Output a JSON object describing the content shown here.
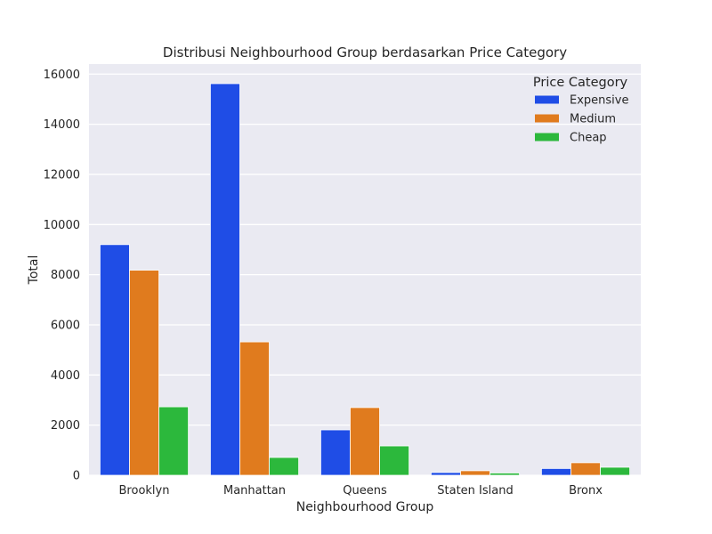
{
  "chart_data": {
    "type": "bar",
    "title": "Distribusi Neighbourhood Group berdasarkan Price Category",
    "xlabel": "Neighbourhood Group",
    "ylabel": "Total",
    "categories": [
      "Brooklyn",
      "Manhattan",
      "Queens",
      "Staten Island",
      "Bronx"
    ],
    "series": [
      {
        "name": "Expensive",
        "color": "#1f4de6",
        "values": [
          9200,
          15620,
          1810,
          110,
          270
        ]
      },
      {
        "name": "Medium",
        "color": "#e07b1e",
        "values": [
          8180,
          5320,
          2700,
          180,
          500
        ]
      },
      {
        "name": "Cheap",
        "color": "#2cb83c",
        "values": [
          2730,
          710,
          1170,
          90,
          320
        ]
      }
    ],
    "ylim": [
      0,
      16400
    ],
    "yticks": [
      0,
      2000,
      4000,
      6000,
      8000,
      10000,
      12000,
      14000,
      16000
    ],
    "grid": true,
    "legend": {
      "title": "Price Category",
      "position": "top-right"
    },
    "colors": {
      "plot_background": "#eaeaf2",
      "grid": "#ffffff"
    }
  }
}
